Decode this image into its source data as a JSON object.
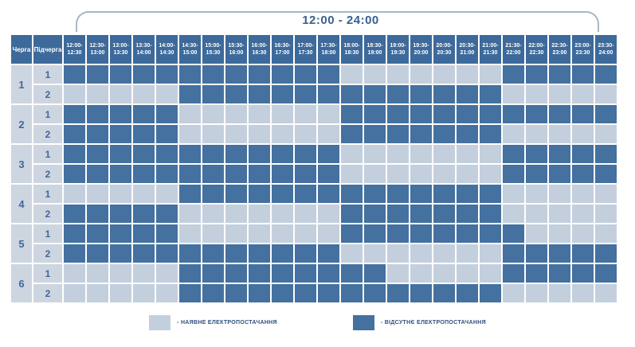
{
  "title": "12:00 - 24:00",
  "colors": {
    "available": "#c4cfdd",
    "outage": "#44719f",
    "header_bg": "#3d6a9b",
    "label_bg": "#cdd5e0",
    "label_text": "#3e6899",
    "title_text": "#38608f",
    "bracket_line": "#aab5c7",
    "legend_text": "#2f4f7d"
  },
  "table": {
    "col1_header": "Черга",
    "col2_header": "Підчерга"
  },
  "legend": [
    {
      "type": "available",
      "label": "- НАЯВНЕ ЕЛЕКТРОПОСТАЧАННЯ"
    },
    {
      "type": "outage",
      "label": "- ВІДСУТНЄ ЕЛЕКТРОПОСТАЧАННЯ"
    }
  ],
  "chart_data": {
    "type": "heatmap",
    "title": "12:00 - 24:00",
    "x_labels": [
      "12:00-12:30",
      "12:30-13:00",
      "13:00-13:30",
      "13:30-14:00",
      "14:00-14:30",
      "14:30-15:00",
      "15:00-15:30",
      "15:30-16:00",
      "16:00-16:30",
      "16:30-17:00",
      "17:00-17:30",
      "17:30-18:00",
      "18:00-18:30",
      "18:30-19:00",
      "19:00-19:30",
      "19:30-20:00",
      "20:00-20:30",
      "20:30-21:00",
      "21:00-21:30",
      "21:30-22:00",
      "22:00-22:30",
      "22:30-23:00",
      "23:00-23:30",
      "23:30-24:00"
    ],
    "value_meaning": {
      "0": "НАЯВНЕ ЕЛЕКТРОПОСТАЧАННЯ (light cell)",
      "1": "ВІДСУТНЄ ЕЛЕКТРОПОСТАЧАННЯ (dark cell)"
    },
    "legend_position": "bottom",
    "rows": [
      {
        "queue": "1",
        "subqueue": "1",
        "values": [
          1,
          1,
          1,
          1,
          1,
          1,
          1,
          1,
          1,
          1,
          1,
          1,
          0,
          0,
          0,
          0,
          0,
          0,
          0,
          1,
          1,
          1,
          1,
          1
        ]
      },
      {
        "queue": "1",
        "subqueue": "2",
        "values": [
          0,
          0,
          0,
          0,
          0,
          1,
          1,
          1,
          1,
          1,
          1,
          1,
          1,
          1,
          1,
          1,
          1,
          1,
          1,
          0,
          0,
          0,
          0,
          0
        ]
      },
      {
        "queue": "2",
        "subqueue": "1",
        "values": [
          1,
          1,
          1,
          1,
          1,
          0,
          0,
          0,
          0,
          0,
          0,
          0,
          1,
          1,
          1,
          1,
          1,
          1,
          1,
          1,
          1,
          1,
          1,
          1
        ]
      },
      {
        "queue": "2",
        "subqueue": "2",
        "values": [
          1,
          1,
          1,
          1,
          1,
          0,
          0,
          0,
          0,
          0,
          0,
          0,
          1,
          1,
          1,
          1,
          1,
          1,
          1,
          0,
          0,
          0,
          0,
          0
        ]
      },
      {
        "queue": "3",
        "subqueue": "1",
        "values": [
          1,
          1,
          1,
          1,
          1,
          1,
          1,
          1,
          1,
          1,
          1,
          1,
          0,
          0,
          0,
          0,
          0,
          0,
          0,
          1,
          1,
          1,
          1,
          1
        ]
      },
      {
        "queue": "3",
        "subqueue": "2",
        "values": [
          1,
          1,
          1,
          1,
          1,
          1,
          1,
          1,
          1,
          1,
          1,
          1,
          0,
          0,
          0,
          0,
          0,
          0,
          0,
          1,
          1,
          1,
          1,
          1
        ]
      },
      {
        "queue": "4",
        "subqueue": "1",
        "values": [
          0,
          0,
          0,
          0,
          0,
          1,
          1,
          1,
          1,
          1,
          1,
          1,
          1,
          1,
          1,
          1,
          1,
          1,
          1,
          0,
          0,
          0,
          0,
          0
        ]
      },
      {
        "queue": "4",
        "subqueue": "2",
        "values": [
          1,
          1,
          1,
          1,
          1,
          0,
          0,
          0,
          0,
          0,
          0,
          0,
          1,
          1,
          1,
          1,
          1,
          1,
          1,
          0,
          0,
          0,
          0,
          0
        ]
      },
      {
        "queue": "5",
        "subqueue": "1",
        "values": [
          1,
          1,
          1,
          1,
          1,
          0,
          0,
          0,
          0,
          0,
          0,
          0,
          1,
          1,
          1,
          1,
          1,
          1,
          1,
          1,
          0,
          0,
          0,
          0
        ]
      },
      {
        "queue": "5",
        "subqueue": "2",
        "values": [
          1,
          1,
          1,
          1,
          1,
          1,
          1,
          1,
          1,
          1,
          1,
          1,
          0,
          0,
          0,
          0,
          0,
          0,
          0,
          1,
          1,
          1,
          1,
          1
        ]
      },
      {
        "queue": "6",
        "subqueue": "1",
        "values": [
          0,
          0,
          0,
          0,
          0,
          1,
          1,
          1,
          1,
          1,
          1,
          1,
          1,
          1,
          0,
          0,
          0,
          0,
          0,
          1,
          1,
          1,
          1,
          1
        ]
      },
      {
        "queue": "6",
        "subqueue": "2",
        "values": [
          0,
          0,
          0,
          0,
          0,
          1,
          1,
          1,
          1,
          1,
          1,
          1,
          1,
          1,
          1,
          1,
          1,
          1,
          1,
          0,
          0,
          0,
          0,
          0
        ]
      }
    ]
  }
}
